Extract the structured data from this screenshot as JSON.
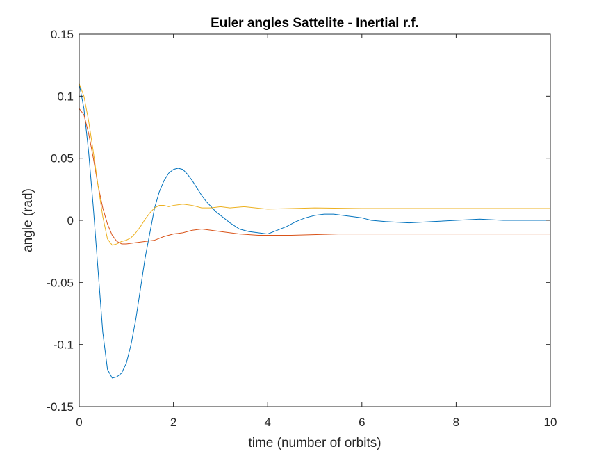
{
  "chart_data": {
    "type": "line",
    "title": "Euler angles Sattelite - Inertial r.f.",
    "xlabel": "time (number of orbits)",
    "ylabel": "angle (rad)",
    "xlim": [
      0,
      10
    ],
    "ylim": [
      -0.15,
      0.15
    ],
    "xticks": [
      0,
      2,
      4,
      6,
      8,
      10
    ],
    "xtick_labels": [
      "0",
      "2",
      "4",
      "6",
      "8",
      "10"
    ],
    "yticks": [
      -0.15,
      -0.1,
      -0.05,
      0,
      0.05,
      0.1,
      0.15
    ],
    "ytick_labels": [
      "-0.15",
      "-0.1",
      "-0.05",
      "0",
      "0.05",
      "0.1",
      "0.15"
    ],
    "grid": false,
    "legend": "none",
    "series": [
      {
        "color": "#0072BD",
        "points": [
          [
            0,
            0.11
          ],
          [
            0.1,
            0.09
          ],
          [
            0.2,
            0.055
          ],
          [
            0.3,
            0.01
          ],
          [
            0.4,
            -0.04
          ],
          [
            0.5,
            -0.09
          ],
          [
            0.6,
            -0.12
          ],
          [
            0.7,
            -0.127
          ],
          [
            0.8,
            -0.126
          ],
          [
            0.9,
            -0.123
          ],
          [
            1.0,
            -0.115
          ],
          [
            1.1,
            -0.1
          ],
          [
            1.2,
            -0.08
          ],
          [
            1.3,
            -0.055
          ],
          [
            1.4,
            -0.03
          ],
          [
            1.5,
            -0.01
          ],
          [
            1.6,
            0.01
          ],
          [
            1.7,
            0.023
          ],
          [
            1.8,
            0.032
          ],
          [
            1.9,
            0.038
          ],
          [
            2.0,
            0.041
          ],
          [
            2.1,
            0.042
          ],
          [
            2.2,
            0.041
          ],
          [
            2.3,
            0.037
          ],
          [
            2.4,
            0.032
          ],
          [
            2.5,
            0.026
          ],
          [
            2.6,
            0.02
          ],
          [
            2.7,
            0.015
          ],
          [
            2.8,
            0.011
          ],
          [
            2.9,
            0.007
          ],
          [
            3.0,
            0.004
          ],
          [
            3.2,
            -0.002
          ],
          [
            3.4,
            -0.007
          ],
          [
            3.6,
            -0.009
          ],
          [
            3.8,
            -0.01
          ],
          [
            4.0,
            -0.011
          ],
          [
            4.2,
            -0.008
          ],
          [
            4.4,
            -0.005
          ],
          [
            4.6,
            -0.001
          ],
          [
            4.8,
            0.002
          ],
          [
            5.0,
            0.004
          ],
          [
            5.2,
            0.005
          ],
          [
            5.4,
            0.005
          ],
          [
            5.6,
            0.004
          ],
          [
            5.8,
            0.003
          ],
          [
            6.0,
            0.002
          ],
          [
            6.2,
            0.0
          ],
          [
            6.5,
            -0.001
          ],
          [
            7.0,
            -0.002
          ],
          [
            7.5,
            -0.001
          ],
          [
            8.0,
            0.0
          ],
          [
            8.5,
            0.001
          ],
          [
            9.0,
            0.0
          ],
          [
            9.5,
            0.0
          ],
          [
            10,
            0.0
          ]
        ]
      },
      {
        "color": "#D95319",
        "points": [
          [
            0,
            0.09
          ],
          [
            0.1,
            0.085
          ],
          [
            0.2,
            0.07
          ],
          [
            0.3,
            0.05
          ],
          [
            0.4,
            0.028
          ],
          [
            0.5,
            0.01
          ],
          [
            0.6,
            -0.003
          ],
          [
            0.7,
            -0.012
          ],
          [
            0.8,
            -0.017
          ],
          [
            0.9,
            -0.019
          ],
          [
            1.0,
            -0.019
          ],
          [
            1.2,
            -0.018
          ],
          [
            1.4,
            -0.017
          ],
          [
            1.6,
            -0.016
          ],
          [
            1.8,
            -0.013
          ],
          [
            2.0,
            -0.011
          ],
          [
            2.2,
            -0.01
          ],
          [
            2.4,
            -0.008
          ],
          [
            2.6,
            -0.007
          ],
          [
            2.8,
            -0.008
          ],
          [
            3.0,
            -0.009
          ],
          [
            3.4,
            -0.011
          ],
          [
            3.8,
            -0.012
          ],
          [
            4.5,
            -0.012
          ],
          [
            5.5,
            -0.011
          ],
          [
            6.5,
            -0.011
          ],
          [
            8,
            -0.011
          ],
          [
            9,
            -0.011
          ],
          [
            10,
            -0.011
          ]
        ]
      },
      {
        "color": "#EDB120",
        "points": [
          [
            0,
            0.11
          ],
          [
            0.1,
            0.1
          ],
          [
            0.2,
            0.08
          ],
          [
            0.3,
            0.055
          ],
          [
            0.4,
            0.028
          ],
          [
            0.5,
            0.003
          ],
          [
            0.6,
            -0.015
          ],
          [
            0.7,
            -0.02
          ],
          [
            0.8,
            -0.019
          ],
          [
            0.9,
            -0.017
          ],
          [
            1.0,
            -0.016
          ],
          [
            1.1,
            -0.014
          ],
          [
            1.2,
            -0.01
          ],
          [
            1.3,
            -0.005
          ],
          [
            1.4,
            0.001
          ],
          [
            1.5,
            0.006
          ],
          [
            1.6,
            0.01
          ],
          [
            1.7,
            0.012
          ],
          [
            1.8,
            0.012
          ],
          [
            1.9,
            0.011
          ],
          [
            2.0,
            0.012
          ],
          [
            2.2,
            0.013
          ],
          [
            2.4,
            0.012
          ],
          [
            2.6,
            0.01
          ],
          [
            2.8,
            0.01
          ],
          [
            3.0,
            0.011
          ],
          [
            3.2,
            0.01
          ],
          [
            3.5,
            0.011
          ],
          [
            4.0,
            0.009
          ],
          [
            5,
            0.01
          ],
          [
            6,
            0.0095
          ],
          [
            7,
            0.0095
          ],
          [
            8,
            0.0095
          ],
          [
            9,
            0.0095
          ],
          [
            10,
            0.0095
          ]
        ]
      }
    ]
  }
}
